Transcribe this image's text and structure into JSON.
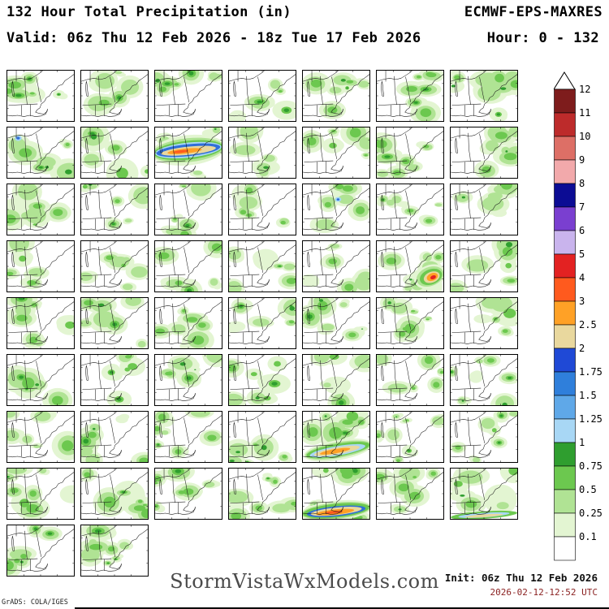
{
  "header": {
    "title": "132 Hour Total Precipitation (in)",
    "model": "ECMWF-EPS-MAXRES",
    "valid": "Valid: 06z Thu 12 Feb 2026 - 18z Tue 17 Feb 2026",
    "hour": "Hour: 0 - 132"
  },
  "footer": {
    "watermark": "StormVistaWxModels.com",
    "init": "Init: 06z Thu 12 Feb 2026",
    "timestamp": "2026-02-12-12:52 UTC",
    "credit": "GrADS: COLA/IGES"
  },
  "colorbar": {
    "unit": "in",
    "labels": [
      "12",
      "11",
      "10",
      "9",
      "8",
      "7",
      "6",
      "5",
      "4",
      "3",
      "2.5",
      "2",
      "1.75",
      "1.5",
      "1.25",
      "1",
      "0.75",
      "0.5",
      "0.25",
      "0.1"
    ],
    "segments": [
      "#7e1c1c",
      "#bd2b2b",
      "#dd6f66",
      "#f2a9ab",
      "#0c0c94",
      "#7a3fd0",
      "#c9b4ed",
      "#e32222",
      "#ff5a1e",
      "#ffa126",
      "#e9d89e",
      "#1f49d6",
      "#2f7fdb",
      "#5fa8e8",
      "#a8d7f5",
      "#2f9e2f",
      "#6cc84f",
      "#b0e394",
      "#e3f5d2"
    ],
    "below_min_color": "#ffffff"
  },
  "palette": {
    "paleGreen": "#e3f5d2",
    "lightGreen": "#b0e394",
    "green": "#6cc84f",
    "darkGreen": "#2f9e2f",
    "lightBlue": "#a8d7f5",
    "blue": "#2f6fd9",
    "darkBlue": "#1f49d6",
    "khaki": "#e9d89e",
    "orange": "#ffa126",
    "orangeRed": "#ff5a1e",
    "red": "#e32222"
  },
  "grid": {
    "columns": 7,
    "full_rows": 8,
    "last_row_panels": 2,
    "panel_count": 58
  },
  "panels": [
    {
      "c": 0.5,
      "f": "dense-nw"
    },
    {
      "c": 0.3,
      "f": "none"
    },
    {
      "c": 0.35,
      "f": "dense-n"
    },
    {
      "c": 0.3,
      "f": "none"
    },
    {
      "c": 0.35,
      "f": "dense-ne"
    },
    {
      "c": 0.4,
      "f": "dense-ne"
    },
    {
      "c": 0.55,
      "f": "dense-ne"
    },
    {
      "c": 0.5,
      "f": "spot-nw"
    },
    {
      "c": 0.35,
      "f": "none"
    },
    {
      "c": 0.25,
      "f": "band-mid-heavy"
    },
    {
      "c": 0.3,
      "f": "none"
    },
    {
      "c": 0.3,
      "f": "none"
    },
    {
      "c": 0.35,
      "f": "none"
    },
    {
      "c": 0.45,
      "f": "dense-ne"
    },
    {
      "c": 0.45,
      "f": "dense-w"
    },
    {
      "c": 0.3,
      "f": "none"
    },
    {
      "c": 0.3,
      "f": "none"
    },
    {
      "c": 0.3,
      "f": "none"
    },
    {
      "c": 0.35,
      "f": "spot-center"
    },
    {
      "c": 0.35,
      "f": "none"
    },
    {
      "c": 0.35,
      "f": "dense-n"
    },
    {
      "c": 0.4,
      "f": "dense-w"
    },
    {
      "c": 0.35,
      "f": "none"
    },
    {
      "c": 0.3,
      "f": "none"
    },
    {
      "c": 0.3,
      "f": "none"
    },
    {
      "c": 0.3,
      "f": "none"
    },
    {
      "c": 0.5,
      "f": "corner-storm-se"
    },
    {
      "c": 0.45,
      "f": "dense-e"
    },
    {
      "c": 0.5,
      "f": "dense-w"
    },
    {
      "c": 0.4,
      "f": "none"
    },
    {
      "c": 0.35,
      "f": "none"
    },
    {
      "c": 0.3,
      "f": "none"
    },
    {
      "c": 0.35,
      "f": "none"
    },
    {
      "c": 0.35,
      "f": "none"
    },
    {
      "c": 0.4,
      "f": "dense-ne"
    },
    {
      "c": 0.4,
      "f": "dense-w"
    },
    {
      "c": 0.35,
      "f": "none"
    },
    {
      "c": 0.3,
      "f": "none"
    },
    {
      "c": 0.35,
      "f": "none"
    },
    {
      "c": 0.3,
      "f": "none"
    },
    {
      "c": 0.3,
      "f": "none"
    },
    {
      "c": 0.35,
      "f": "none"
    },
    {
      "c": 0.35,
      "f": "dense-w"
    },
    {
      "c": 0.35,
      "f": "none"
    },
    {
      "c": 0.4,
      "f": "none"
    },
    {
      "c": 0.4,
      "f": "dense-s"
    },
    {
      "c": 0.45,
      "f": "band-south"
    },
    {
      "c": 0.35,
      "f": "none"
    },
    {
      "c": 0.4,
      "f": "dense-ne"
    },
    {
      "c": 0.45,
      "f": "dense-w"
    },
    {
      "c": 0.45,
      "f": "none"
    },
    {
      "c": 0.4,
      "f": "none"
    },
    {
      "c": 0.45,
      "f": "dense-s"
    },
    {
      "c": 0.45,
      "f": "band-south-heavy"
    },
    {
      "c": 0.4,
      "f": "none"
    },
    {
      "c": 0.5,
      "f": "band-bottom-thin"
    },
    {
      "c": 0.5,
      "f": "dense-sw"
    },
    {
      "c": 0.45,
      "f": "dense-w"
    }
  ]
}
